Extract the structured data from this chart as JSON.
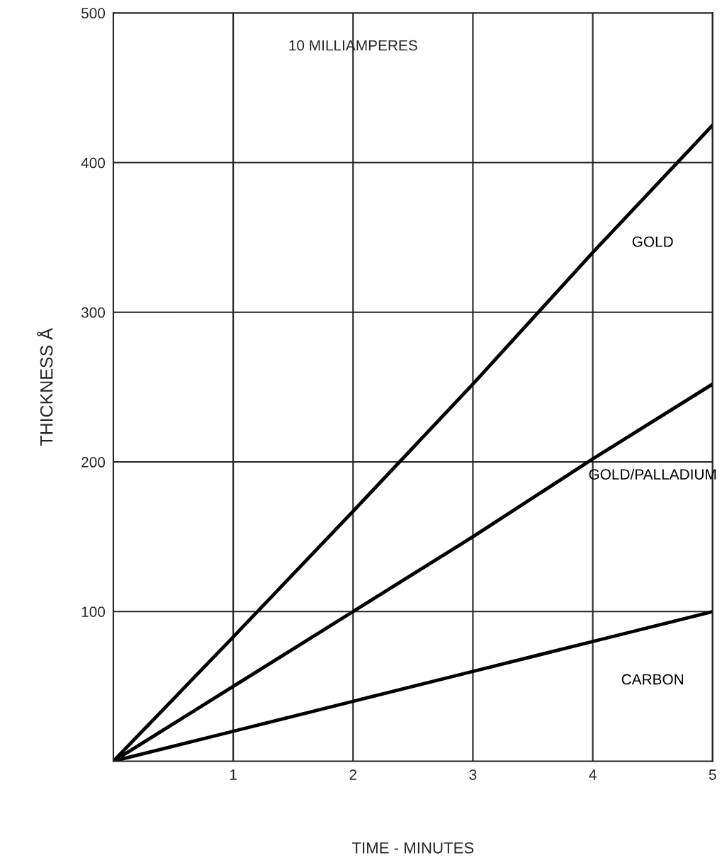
{
  "chart_data": {
    "type": "line",
    "xlabel": "TIME - MINUTES",
    "ylabel": "THICKNESS Å",
    "annotations": [
      "10 MILLIAMPERES"
    ],
    "x": [
      0,
      1,
      2,
      3,
      4,
      5
    ],
    "series": [
      {
        "name": "GOLD",
        "color": "#000000",
        "values": [
          0,
          83,
          167,
          252,
          340,
          425
        ]
      },
      {
        "name": "GOLD/PALLADIUM",
        "color": "#000000",
        "values": [
          0,
          50,
          100,
          150,
          202,
          252
        ]
      },
      {
        "name": "CARBON",
        "color": "#000000",
        "values": [
          0,
          20,
          40,
          60,
          80,
          100
        ]
      }
    ],
    "xlim": [
      0,
      5
    ],
    "ylim": [
      0,
      500
    ],
    "xticks": [
      1,
      2,
      3,
      4,
      5
    ],
    "yticks": [
      100,
      200,
      300,
      400,
      500
    ],
    "grid": true,
    "legend": false,
    "marker": "none",
    "line_style": "solid"
  }
}
